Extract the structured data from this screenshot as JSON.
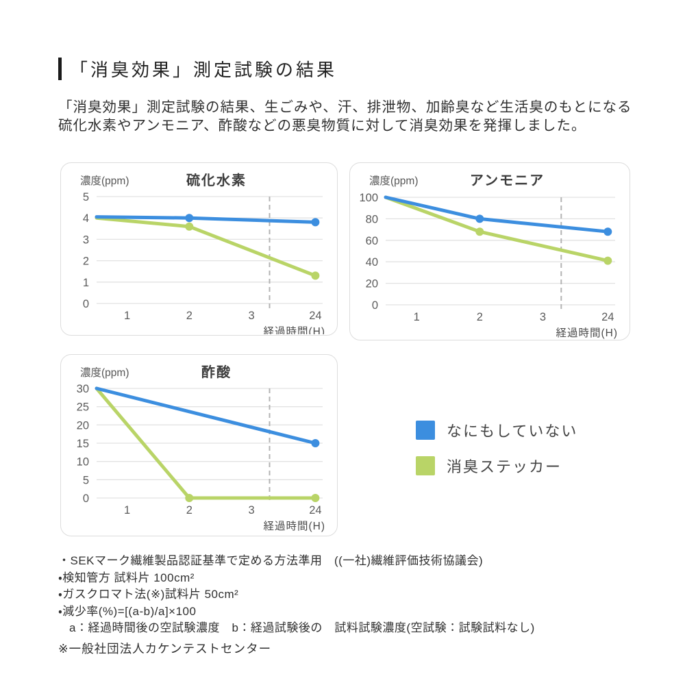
{
  "page": {
    "title": "「消臭効果」測定試験の結果"
  },
  "intro": {
    "line1": "「消臭効果」測定試験の結果、生ごみや、汗、排泄物、加齢臭など生活臭のもとになる",
    "line2": "硫化水素やアンモニア、酢酸などの悪臭物質に対して消臭効果を発揮しました。"
  },
  "colors": {
    "blue": "#3C8EDF",
    "green": "#B9D467",
    "grid": "#E2E2E2",
    "axis_break_dash": "#B3B3B3",
    "panel_border": "#DCDCDC"
  },
  "legend": {
    "items": [
      {
        "label": "なにもしていない",
        "color": "#3C8EDF"
      },
      {
        "label": "消臭ステッカー",
        "color": "#B9D467"
      }
    ]
  },
  "chart_data": [
    {
      "type": "line",
      "title": "硫化水素",
      "ylabel": "濃度(ppm)",
      "xlabel": "経過時間(H)",
      "ylim": [
        0,
        5
      ],
      "yticks": [
        5,
        4,
        3,
        2,
        1,
        0
      ],
      "xticks": [
        "1",
        "2",
        "3",
        "24"
      ],
      "x_axis_break_between": [
        "3",
        "24"
      ],
      "grid": true,
      "series": [
        {
          "name": "なにもしていない",
          "color": "#3C8EDF",
          "points": [
            {
              "t": 0,
              "v": 4.05,
              "dot": false
            },
            {
              "t": 2,
              "v": 4.0,
              "dot": true
            },
            {
              "t": 24,
              "v": 3.8,
              "dot": true
            }
          ]
        },
        {
          "name": "消臭ステッカー",
          "color": "#B9D467",
          "points": [
            {
              "t": 0,
              "v": 4.0,
              "dot": false
            },
            {
              "t": 2,
              "v": 3.6,
              "dot": true
            },
            {
              "t": 24,
              "v": 1.3,
              "dot": true
            }
          ]
        }
      ]
    },
    {
      "type": "line",
      "title": "アンモニア",
      "ylabel": "濃度(ppm)",
      "xlabel": "経過時間(H)",
      "ylim": [
        0,
        100
      ],
      "yticks": [
        100,
        80,
        60,
        40,
        20,
        0
      ],
      "xticks": [
        "1",
        "2",
        "3",
        "24"
      ],
      "x_axis_break_between": [
        "3",
        "24"
      ],
      "grid": true,
      "series": [
        {
          "name": "なにもしていない",
          "color": "#3C8EDF",
          "points": [
            {
              "t": 0,
              "v": 100,
              "dot": false
            },
            {
              "t": 2,
              "v": 80,
              "dot": true
            },
            {
              "t": 24,
              "v": 68,
              "dot": true
            }
          ]
        },
        {
          "name": "消臭ステッカー",
          "color": "#B9D467",
          "points": [
            {
              "t": 0,
              "v": 100,
              "dot": false
            },
            {
              "t": 2,
              "v": 68,
              "dot": true
            },
            {
              "t": 24,
              "v": 41,
              "dot": true
            }
          ]
        }
      ]
    },
    {
      "type": "line",
      "title": "酢酸",
      "ylabel": "濃度(ppm)",
      "xlabel": "経過時間(H)",
      "ylim": [
        0,
        30
      ],
      "yticks": [
        30,
        25,
        20,
        15,
        10,
        5,
        0
      ],
      "xticks": [
        "1",
        "2",
        "3",
        "24"
      ],
      "x_axis_break_between": [
        "3",
        "24"
      ],
      "grid": true,
      "series": [
        {
          "name": "なにもしていない",
          "color": "#3C8EDF",
          "points": [
            {
              "t": 0,
              "v": 30,
              "dot": false
            },
            {
              "t": 24,
              "v": 15,
              "dot": true
            }
          ]
        },
        {
          "name": "消臭ステッカー",
          "color": "#B9D467",
          "points": [
            {
              "t": 0,
              "v": 30,
              "dot": false
            },
            {
              "t": 2,
              "v": 0,
              "dot": true
            },
            {
              "t": 24,
              "v": 0,
              "dot": true
            }
          ]
        }
      ]
    }
  ],
  "footnotes": {
    "lines": [
      "・SEKマーク繊維製品認証基準で定める方法準用　((一社)繊維評価技術協議会)",
      "・検知管方 試料片 100cm²",
      "・ガスクロマト法(※)試料片 50cm²",
      "・減少率(%)=[(a-b)/a]×100",
      "a：経過時間後の空試験濃度　b：経過試験後の　試料試験濃度(空試験：試験試料なし)"
    ],
    "note": "※一般社団法人カケンテストセンター"
  }
}
